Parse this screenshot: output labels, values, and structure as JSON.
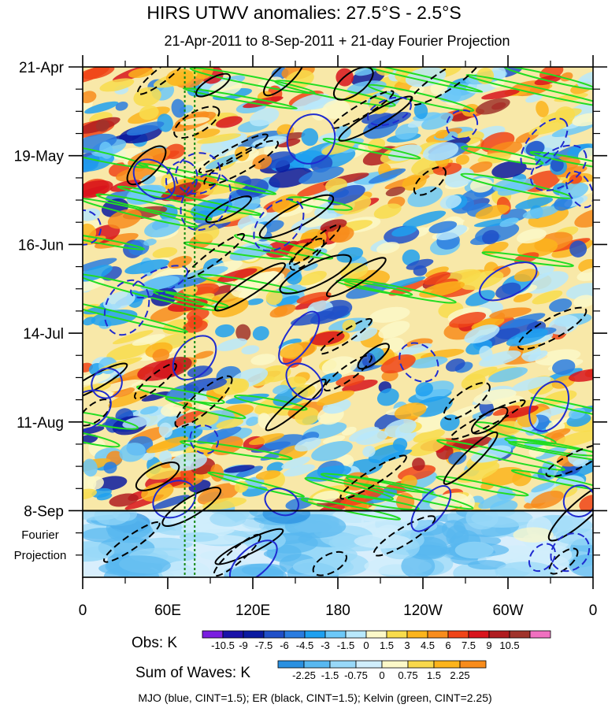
{
  "chart_data": {
    "type": "heatmap",
    "title": "HIRS UTWV anomalies: 27.5°S - 2.5°S",
    "subtitle": "21-Apr-2011 to 8-Sep-2011 + 21-day Fourier Projection",
    "x_ticks": [
      "0",
      "60E",
      "120E",
      "180",
      "120W",
      "60W",
      "0"
    ],
    "x_tick_values": [
      0,
      60,
      120,
      180,
      240,
      300,
      360
    ],
    "xlim": [
      0,
      360
    ],
    "y_ticks": [
      "21-Apr",
      "19-May",
      "16-Jun",
      "14-Jul",
      "11-Aug",
      "8-Sep"
    ],
    "y_tick_days": [
      0,
      28,
      56,
      84,
      112,
      140
    ],
    "ylim_days": [
      0,
      161
    ],
    "projection_label_1": "Fourier",
    "projection_label_2": "Projection",
    "projection_start_day": 140,
    "vertical_lines_lon": [
      72,
      79
    ],
    "obs_colorbar": {
      "label": "Obs: K",
      "levels": [
        "-10.5",
        "-9",
        "-7.5",
        "-6",
        "-4.5",
        "-3",
        "-1.5",
        "0",
        "1.5",
        "3",
        "4.5",
        "6",
        "7.5",
        "9",
        "10.5"
      ],
      "colors": [
        "#7a1ee0",
        "#1a12a8",
        "#0a1aa0",
        "#2050c8",
        "#2a7ce0",
        "#1ea0f0",
        "#6cc8f8",
        "#b8e8fc",
        "#fcf8c8",
        "#f8dc4c",
        "#fcb41c",
        "#f88c1c",
        "#f04418",
        "#d8141c",
        "#b01c20",
        "#a0342c",
        "#f070c0"
      ]
    },
    "waves_colorbar": {
      "label": "Sum of Waves: K",
      "levels": [
        "-2.25",
        "-1.5",
        "-0.75",
        "0",
        "0.75",
        "1.5",
        "2.25"
      ],
      "colors": [
        "#2a90e0",
        "#58b8f0",
        "#98d8f8",
        "#d0eefc",
        "#fcf8c8",
        "#f8d84c",
        "#fcb41c",
        "#f88c1c"
      ]
    },
    "footer": "MJO (blue, CINT=1.5); ER (black, CINT=1.5); Kelvin (green, CINT=2.25)",
    "series": [
      {
        "name": "MJO",
        "color": "#1f2bd0",
        "cint": 1.5
      },
      {
        "name": "ER",
        "color": "#000000",
        "cint": 1.5
      },
      {
        "name": "Kelvin",
        "color": "#22dd22",
        "cint": 2.25
      }
    ]
  }
}
